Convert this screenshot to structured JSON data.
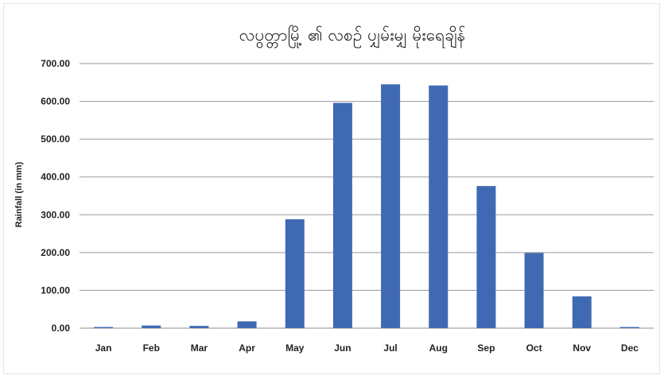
{
  "chart_data": {
    "type": "bar",
    "title": "လပွတ္တာမြို့ ၏ လစဉ် ပျှမ်းမျှ မိုးရေချိန်",
    "xlabel": "",
    "ylabel": "Rainfall (in mm)",
    "ylim": [
      0,
      700
    ],
    "yticks": [
      "0.00",
      "100.00",
      "200.00",
      "300.00",
      "400.00",
      "500.00",
      "600.00",
      "700.00"
    ],
    "grid": true,
    "legend": "none",
    "categories": [
      "Jan",
      "Feb",
      "Mar",
      "Apr",
      "May",
      "Jun",
      "Jul",
      "Aug",
      "Sep",
      "Oct",
      "Nov",
      "Dec"
    ],
    "values": [
      3,
      7,
      6,
      18,
      288,
      596,
      645,
      642,
      376,
      199,
      84,
      3
    ],
    "color": "#3F6AB3"
  }
}
